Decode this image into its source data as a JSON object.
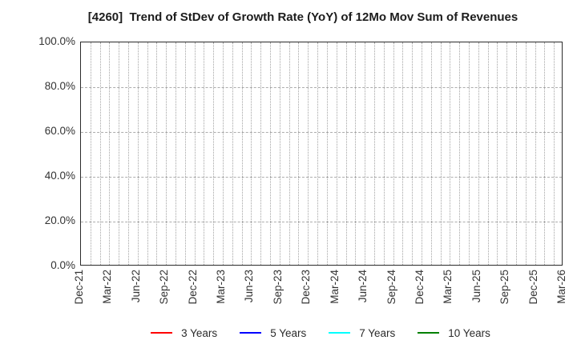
{
  "page": {
    "background": "#ffffff"
  },
  "chart_data": {
    "type": "line",
    "title": "[4260]  Trend of StDev of Growth Rate (YoY) of 12Mo Mov Sum of Revenues",
    "x_ticks": [
      "Dec-21",
      "Mar-22",
      "Jun-22",
      "Sep-22",
      "Dec-22",
      "Mar-23",
      "Jun-23",
      "Sep-23",
      "Dec-23",
      "Mar-24",
      "Jun-24",
      "Sep-24",
      "Dec-24",
      "Mar-25",
      "Jun-25",
      "Sep-25",
      "Dec-25",
      "Mar-26"
    ],
    "months_per_x_tick": 3,
    "y_ticks": [
      {
        "label": "0.0%",
        "value": 0
      },
      {
        "label": "20.0%",
        "value": 20
      },
      {
        "label": "40.0%",
        "value": 40
      },
      {
        "label": "60.0%",
        "value": 60
      },
      {
        "label": "80.0%",
        "value": 80
      },
      {
        "label": "100.0%",
        "value": 100
      }
    ],
    "ylim": [
      0,
      100
    ],
    "grid": true,
    "legend_position": "bottom",
    "series": [
      {
        "name": "3 Years",
        "color": "#ff0000",
        "values": []
      },
      {
        "name": "5 Years",
        "color": "#0000ff",
        "values": []
      },
      {
        "name": "7 Years",
        "color": "#00ffff",
        "values": []
      },
      {
        "name": "10 Years",
        "color": "#008000",
        "values": []
      }
    ],
    "colors": {
      "grid": "#a4a4a4",
      "border": "#2b2b2b",
      "tick_text": "#333333",
      "title_text": "#1c1c1c"
    }
  }
}
